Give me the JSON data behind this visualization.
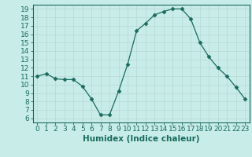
{
  "x": [
    0,
    1,
    2,
    3,
    4,
    5,
    6,
    7,
    8,
    9,
    10,
    11,
    12,
    13,
    14,
    15,
    16,
    17,
    18,
    19,
    20,
    21,
    22,
    23
  ],
  "y": [
    11,
    11.3,
    10.7,
    10.6,
    10.6,
    9.8,
    8.3,
    6.4,
    6.4,
    9.2,
    12.4,
    16.4,
    17.3,
    18.3,
    18.7,
    19.0,
    19.0,
    17.8,
    15.0,
    13.3,
    12.0,
    11.0,
    9.7,
    8.3
  ],
  "line_color": "#1a6b5e",
  "marker": "D",
  "marker_size": 2.5,
  "bg_color": "#c8ece8",
  "grid_color": "#b8d8d4",
  "xlabel": "Humidex (Indice chaleur)",
  "xlim": [
    -0.5,
    23.5
  ],
  "ylim": [
    5.5,
    19.5
  ],
  "xticks": [
    0,
    1,
    2,
    3,
    4,
    5,
    6,
    7,
    8,
    9,
    10,
    11,
    12,
    13,
    14,
    15,
    16,
    17,
    18,
    19,
    20,
    21,
    22,
    23
  ],
  "yticks": [
    6,
    7,
    8,
    9,
    10,
    11,
    12,
    13,
    14,
    15,
    16,
    17,
    18,
    19
  ],
  "tick_color": "#1a6b5e",
  "label_fontsize": 7.5,
  "tick_fontsize": 6.5
}
